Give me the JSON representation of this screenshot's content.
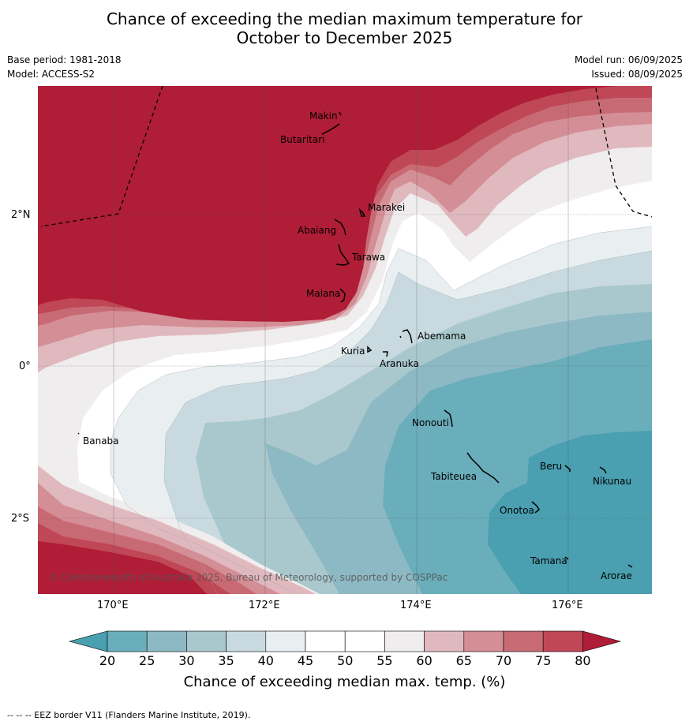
{
  "title_line1": "Chance of exceeding the median maximum temperature for",
  "title_line2": "October to December 2025",
  "meta_left": {
    "base_period": "Base period: 1981-2018",
    "model": "Model: ACCESS-S2"
  },
  "meta_right": {
    "model_run": "Model run: 06/09/2025",
    "issued": "Issued: 08/09/2025"
  },
  "lat_labels": [
    "2°N",
    "0°",
    "2°S"
  ],
  "lon_labels": [
    "170°E",
    "172°E",
    "174°E",
    "176°E"
  ],
  "places": [
    "Makin",
    "Butaritari",
    "Marakei",
    "Abaiang",
    "Tarawa",
    "Maiana",
    "Abemama",
    "Kuria",
    "Aranuka",
    "Banaba",
    "Nonouti",
    "Beru",
    "Tabiteuea",
    "Nikunau",
    "Onotoa",
    "Tamana",
    "Arorae"
  ],
  "copyright": "© Commonwealth of Australia 2025, Bureau of Meteorology, supported by COSPPac",
  "colorbar": {
    "ticks": [
      "20",
      "25",
      "30",
      "35",
      "40",
      "45",
      "50",
      "55",
      "60",
      "65",
      "70",
      "75",
      "80"
    ],
    "colors": [
      "#4a9fb0",
      "#6aaebb",
      "#8db9c4",
      "#a9c8ce",
      "#c8dadf",
      "#e9eff1",
      "#ffffff",
      "#ffffff",
      "#efeded",
      "#e0b9bf",
      "#d48e96",
      "#c86a74",
      "#bf4756",
      "#b01d36"
    ],
    "label": "Chance of exceeding median max. temp. (%)"
  },
  "footer": "--  --  -- EEZ border V11 (Flanders Marine Institute, 2019)."
}
